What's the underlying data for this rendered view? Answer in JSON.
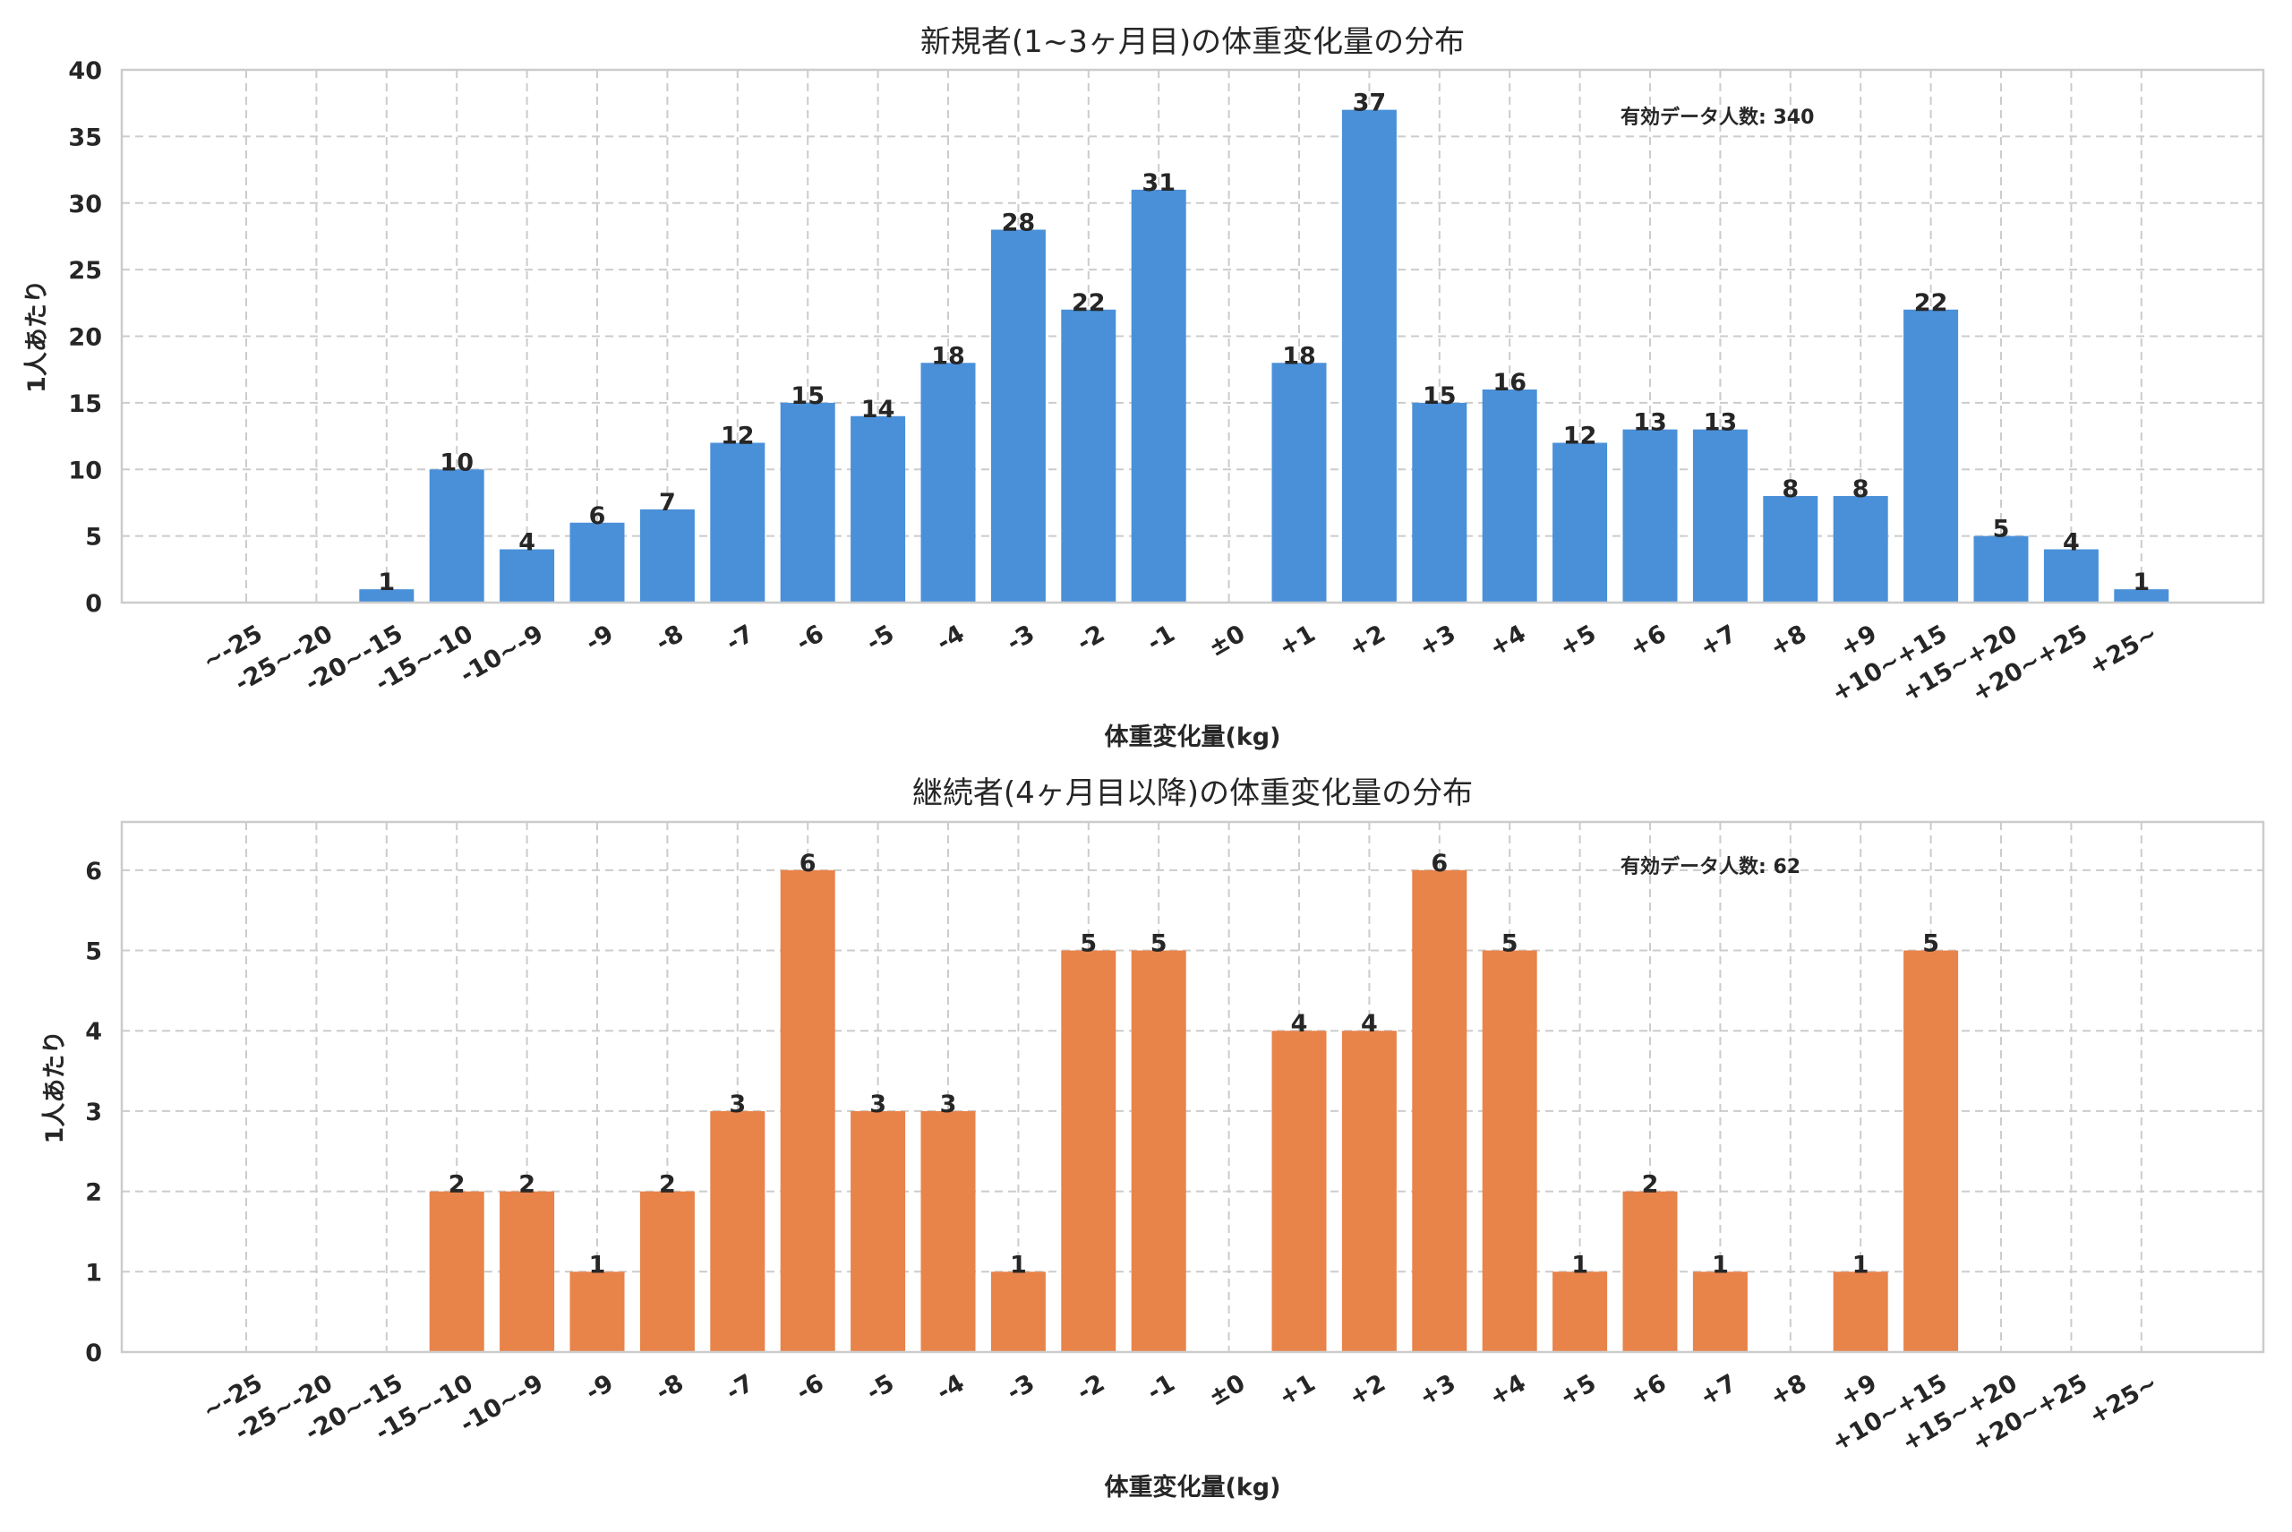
{
  "chart_data": [
    {
      "type": "bar",
      "title": "新規者(1~3ヶ月目)の体重変化量の分布",
      "xlabel": "体重変化量(kg)",
      "ylabel": "1人あたり",
      "ylim": [
        0,
        40
      ],
      "yticks": [
        0,
        5,
        10,
        15,
        20,
        25,
        30,
        35,
        40
      ],
      "grid": true,
      "color": "#4a90d9",
      "annotation": "有効データ人数: 340",
      "categories": [
        "~-25",
        "-25~-20",
        "-20~-15",
        "-15~-10",
        "-10~-9",
        "-9",
        "-8",
        "-7",
        "-6",
        "-5",
        "-4",
        "-3",
        "-2",
        "-1",
        "±0",
        "+1",
        "+2",
        "+3",
        "+4",
        "+5",
        "+6",
        "+7",
        "+8",
        "+9",
        "+10~+15",
        "+15~+20",
        "+20~+25",
        "+25~"
      ],
      "values": [
        0,
        0,
        1,
        10,
        4,
        6,
        7,
        12,
        15,
        14,
        18,
        28,
        22,
        31,
        0,
        18,
        37,
        15,
        16,
        12,
        13,
        13,
        8,
        8,
        22,
        5,
        4,
        1
      ]
    },
    {
      "type": "bar",
      "title": "継続者(4ヶ月目以降)の体重変化量の分布",
      "xlabel": "体重変化量(kg)",
      "ylabel": "1人あたり",
      "ylim": [
        0,
        6.6
      ],
      "yticks": [
        0,
        1,
        2,
        3,
        4,
        5,
        6
      ],
      "grid": true,
      "color": "#e8834a",
      "annotation": "有効データ人数: 62",
      "categories": [
        "~-25",
        "-25~-20",
        "-20~-15",
        "-15~-10",
        "-10~-9",
        "-9",
        "-8",
        "-7",
        "-6",
        "-5",
        "-4",
        "-3",
        "-2",
        "-1",
        "±0",
        "+1",
        "+2",
        "+3",
        "+4",
        "+5",
        "+6",
        "+7",
        "+8",
        "+9",
        "+10~+15",
        "+15~+20",
        "+20~+25",
        "+25~"
      ],
      "values": [
        0,
        0,
        0,
        2,
        2,
        1,
        2,
        3,
        6,
        3,
        3,
        1,
        5,
        5,
        0,
        4,
        4,
        6,
        5,
        1,
        2,
        1,
        0,
        1,
        5,
        0,
        0,
        0
      ]
    }
  ]
}
